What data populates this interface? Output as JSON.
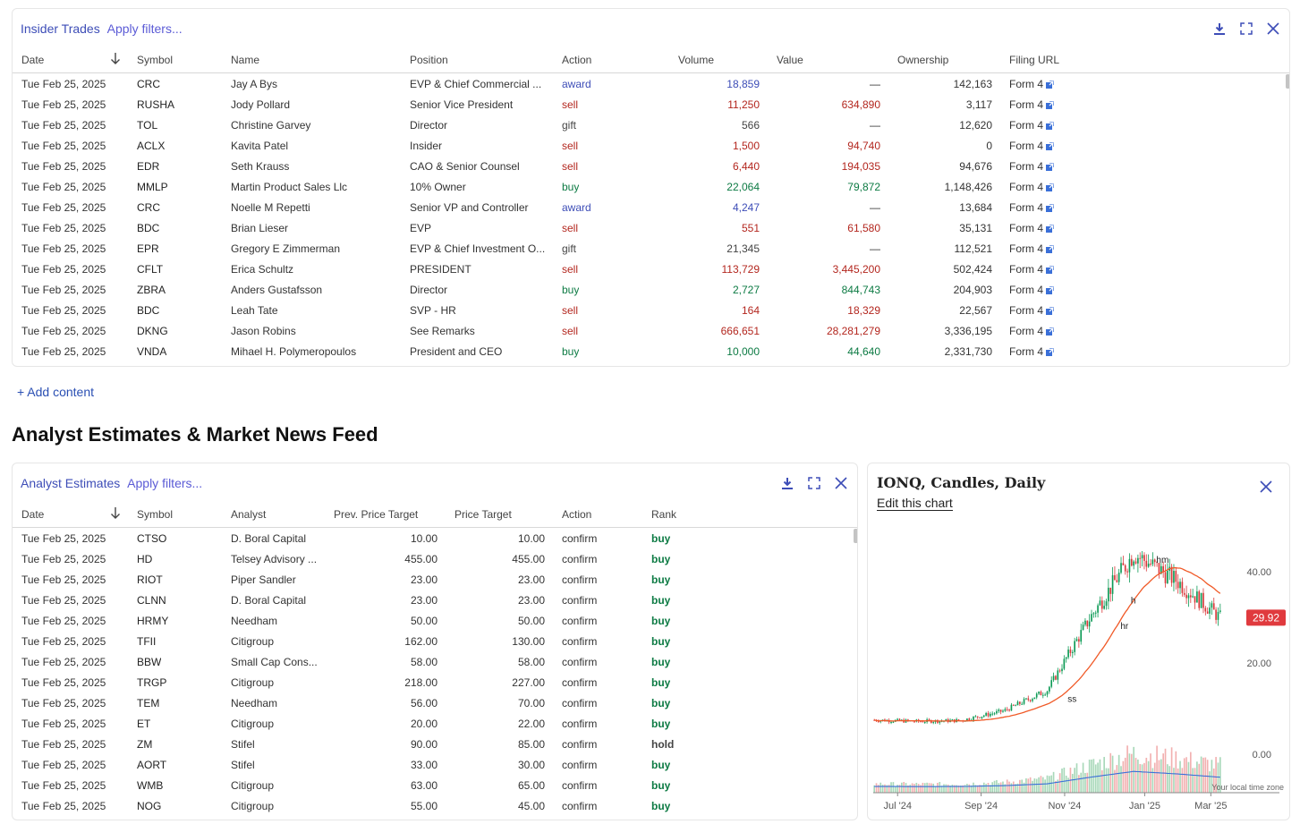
{
  "insider": {
    "title": "Insider Trades",
    "filters": "Apply filters...",
    "columns": [
      "Date",
      "Symbol",
      "Name",
      "Position",
      "Action",
      "Volume",
      "Value",
      "Ownership",
      "Filing URL"
    ],
    "rows": [
      {
        "date": "Tue Feb 25, 2025",
        "symbol": "CRC",
        "name": "Jay A Bys",
        "position": "EVP & Chief Commercial ...",
        "action": "award",
        "volume": "18,859",
        "value": "—",
        "ownership": "142,163",
        "filing": "Form 4"
      },
      {
        "date": "Tue Feb 25, 2025",
        "symbol": "RUSHA",
        "name": "Jody Pollard",
        "position": "Senior Vice President",
        "action": "sell",
        "volume": "11,250",
        "value": "634,890",
        "ownership": "3,117",
        "filing": "Form 4"
      },
      {
        "date": "Tue Feb 25, 2025",
        "symbol": "TOL",
        "name": "Christine Garvey",
        "position": "Director",
        "action": "gift",
        "volume": "566",
        "value": "—",
        "ownership": "12,620",
        "filing": "Form 4"
      },
      {
        "date": "Tue Feb 25, 2025",
        "symbol": "ACLX",
        "name": "Kavita Patel",
        "position": "Insider",
        "action": "sell",
        "volume": "1,500",
        "value": "94,740",
        "ownership": "0",
        "filing": "Form 4"
      },
      {
        "date": "Tue Feb 25, 2025",
        "symbol": "EDR",
        "name": "Seth Krauss",
        "position": "CAO & Senior Counsel",
        "action": "sell",
        "volume": "6,440",
        "value": "194,035",
        "ownership": "94,676",
        "filing": "Form 4"
      },
      {
        "date": "Tue Feb 25, 2025",
        "symbol": "MMLP",
        "name": "Martin Product Sales Llc",
        "position": "10% Owner",
        "action": "buy",
        "volume": "22,064",
        "value": "79,872",
        "ownership": "1,148,426",
        "filing": "Form 4"
      },
      {
        "date": "Tue Feb 25, 2025",
        "symbol": "CRC",
        "name": "Noelle M Repetti",
        "position": "Senior VP and Controller",
        "action": "award",
        "volume": "4,247",
        "value": "—",
        "ownership": "13,684",
        "filing": "Form 4"
      },
      {
        "date": "Tue Feb 25, 2025",
        "symbol": "BDC",
        "name": "Brian Lieser",
        "position": "EVP",
        "action": "sell",
        "volume": "551",
        "value": "61,580",
        "ownership": "35,131",
        "filing": "Form 4"
      },
      {
        "date": "Tue Feb 25, 2025",
        "symbol": "EPR",
        "name": "Gregory E Zimmerman",
        "position": "EVP & Chief Investment O...",
        "action": "gift",
        "volume": "21,345",
        "value": "—",
        "ownership": "112,521",
        "filing": "Form 4"
      },
      {
        "date": "Tue Feb 25, 2025",
        "symbol": "CFLT",
        "name": "Erica Schultz",
        "position": "PRESIDENT",
        "action": "sell",
        "volume": "113,729",
        "value": "3,445,200",
        "ownership": "502,424",
        "filing": "Form 4"
      },
      {
        "date": "Tue Feb 25, 2025",
        "symbol": "ZBRA",
        "name": "Anders Gustafsson",
        "position": "Director",
        "action": "buy",
        "volume": "2,727",
        "value": "844,743",
        "ownership": "204,903",
        "filing": "Form 4"
      },
      {
        "date": "Tue Feb 25, 2025",
        "symbol": "BDC",
        "name": "Leah Tate",
        "position": "SVP - HR",
        "action": "sell",
        "volume": "164",
        "value": "18,329",
        "ownership": "22,567",
        "filing": "Form 4"
      },
      {
        "date": "Tue Feb 25, 2025",
        "symbol": "DKNG",
        "name": "Jason Robins",
        "position": "See Remarks",
        "action": "sell",
        "volume": "666,651",
        "value": "28,281,279",
        "ownership": "3,336,195",
        "filing": "Form 4"
      },
      {
        "date": "Tue Feb 25, 2025",
        "symbol": "VNDA",
        "name": "Mihael H. Polymeropoulos",
        "position": "President and CEO",
        "action": "buy",
        "volume": "10,000",
        "value": "44,640",
        "ownership": "2,331,730",
        "filing": "Form 4"
      }
    ]
  },
  "add_content": "+ Add content",
  "section_title": "Analyst Estimates & Market News Feed",
  "analyst": {
    "title": "Analyst Estimates",
    "filters": "Apply filters...",
    "columns": [
      "Date",
      "Symbol",
      "Analyst",
      "Prev. Price Target",
      "Price Target",
      "Action",
      "Rank"
    ],
    "rows": [
      {
        "date": "Tue Feb 25, 2025",
        "symbol": "CTSO",
        "analyst": "D. Boral Capital",
        "prev": "10.00",
        "target": "10.00",
        "action": "confirm",
        "rank": "buy"
      },
      {
        "date": "Tue Feb 25, 2025",
        "symbol": "HD",
        "analyst": "Telsey Advisory ...",
        "prev": "455.00",
        "target": "455.00",
        "action": "confirm",
        "rank": "buy"
      },
      {
        "date": "Tue Feb 25, 2025",
        "symbol": "RIOT",
        "analyst": "Piper Sandler",
        "prev": "23.00",
        "target": "23.00",
        "action": "confirm",
        "rank": "buy"
      },
      {
        "date": "Tue Feb 25, 2025",
        "symbol": "CLNN",
        "analyst": "D. Boral Capital",
        "prev": "23.00",
        "target": "23.00",
        "action": "confirm",
        "rank": "buy"
      },
      {
        "date": "Tue Feb 25, 2025",
        "symbol": "HRMY",
        "analyst": "Needham",
        "prev": "50.00",
        "target": "50.00",
        "action": "confirm",
        "rank": "buy"
      },
      {
        "date": "Tue Feb 25, 2025",
        "symbol": "TFII",
        "analyst": "Citigroup",
        "prev": "162.00",
        "target": "130.00",
        "action": "confirm",
        "rank": "buy"
      },
      {
        "date": "Tue Feb 25, 2025",
        "symbol": "BBW",
        "analyst": "Small Cap Cons...",
        "prev": "58.00",
        "target": "58.00",
        "action": "confirm",
        "rank": "buy"
      },
      {
        "date": "Tue Feb 25, 2025",
        "symbol": "TRGP",
        "analyst": "Citigroup",
        "prev": "218.00",
        "target": "227.00",
        "action": "confirm",
        "rank": "buy"
      },
      {
        "date": "Tue Feb 25, 2025",
        "symbol": "TEM",
        "analyst": "Needham",
        "prev": "56.00",
        "target": "70.00",
        "action": "confirm",
        "rank": "buy"
      },
      {
        "date": "Tue Feb 25, 2025",
        "symbol": "ET",
        "analyst": "Citigroup",
        "prev": "20.00",
        "target": "22.00",
        "action": "confirm",
        "rank": "buy"
      },
      {
        "date": "Tue Feb 25, 2025",
        "symbol": "ZM",
        "analyst": "Stifel",
        "prev": "90.00",
        "target": "85.00",
        "action": "confirm",
        "rank": "hold"
      },
      {
        "date": "Tue Feb 25, 2025",
        "symbol": "AORT",
        "analyst": "Stifel",
        "prev": "33.00",
        "target": "30.00",
        "action": "confirm",
        "rank": "buy"
      },
      {
        "date": "Tue Feb 25, 2025",
        "symbol": "WMB",
        "analyst": "Citigroup",
        "prev": "63.00",
        "target": "65.00",
        "action": "confirm",
        "rank": "buy"
      },
      {
        "date": "Tue Feb 25, 2025",
        "symbol": "NOG",
        "analyst": "Citigroup",
        "prev": "55.00",
        "target": "45.00",
        "action": "confirm",
        "rank": "buy"
      }
    ]
  },
  "chart": {
    "title": "IONQ, Candles, Daily",
    "edit_label": "Edit this chart",
    "y_ticks": [
      "40.00",
      "20.00",
      "0.00"
    ],
    "x_ticks": [
      "Jul '24",
      "Sep '24",
      "Nov '24",
      "Jan '25",
      "Mar '25"
    ],
    "last_price": "29.92",
    "timezone_note": "Your local time zone",
    "markers": [
      "ss",
      "hr",
      "h",
      "hm"
    ],
    "colors": {
      "up": "#0c9a55",
      "down": "#d9383a",
      "ma": "#f05a28",
      "vol_ma": "#3a6fd8",
      "price_badge": "#e03a3e"
    }
  },
  "chart_data": {
    "type": "candlestick",
    "title": "IONQ, Candles, Daily",
    "x_labels": [
      "Jul '24",
      "Sep '24",
      "Nov '24",
      "Jan '25",
      "Mar '25"
    ],
    "ylim": [
      0,
      50
    ],
    "y_ticks": [
      0,
      20,
      40
    ],
    "last_price": 29.92,
    "approx_close_path": [
      [
        "Jul '24",
        7.5
      ],
      [
        "Aug '24",
        7.2
      ],
      [
        "Sep '24",
        7.4
      ],
      [
        "Oct '24",
        9.5
      ],
      [
        "Nov '24",
        14.0
      ],
      [
        "Dec '24",
        30.0
      ],
      [
        "Jan '25",
        44.0
      ],
      [
        "Feb '25",
        38.0
      ],
      [
        "Mar '25",
        29.92
      ]
    ],
    "moving_average_end": 38.5
  }
}
